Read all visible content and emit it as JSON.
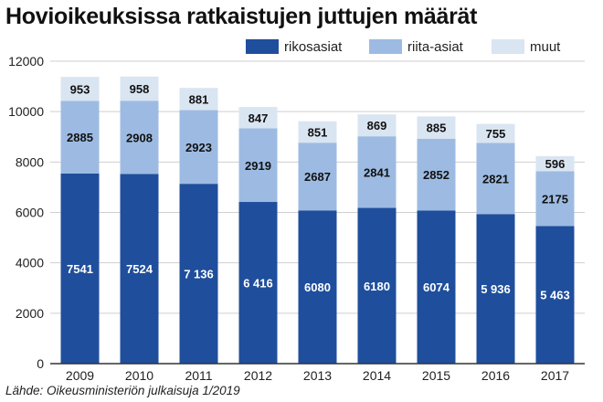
{
  "title": "Hovioikeuksissa ratkaistujen juttujen määrät",
  "source": "Lähde: Oikeusministeriön julkaisuja 1/2019",
  "colors": {
    "rikosasiat": "#1f4e9c",
    "riita_asiat": "#9dbbe2",
    "muut": "#dae5f2",
    "grid": "#cfcfcf",
    "axis": "#333333"
  },
  "chart_data": {
    "type": "bar",
    "stacked": true,
    "title": "Hovioikeuksissa ratkaistujen juttujen määrät",
    "xlabel": "",
    "ylabel": "",
    "categories": [
      "2009",
      "2010",
      "2011",
      "2012",
      "2013",
      "2014",
      "2015",
      "2016",
      "2017"
    ],
    "series": [
      {
        "name": "rikosasiat",
        "values": [
          7541,
          7524,
          7136,
          6416,
          6080,
          6180,
          6074,
          5936,
          5463
        ],
        "labels": [
          "7541",
          "7524",
          "7 136",
          "6 416",
          "6080",
          "6180",
          "6074",
          "5 936",
          "5 463"
        ]
      },
      {
        "name": "riita-asiat",
        "values": [
          2885,
          2908,
          2923,
          2919,
          2687,
          2841,
          2852,
          2821,
          2175
        ],
        "labels": [
          "2885",
          "2908",
          "2923",
          "2919",
          "2687",
          "2841",
          "2852",
          "2821",
          "2175"
        ]
      },
      {
        "name": "muut",
        "values": [
          953,
          958,
          881,
          847,
          851,
          869,
          885,
          755,
          596
        ],
        "labels": [
          "953",
          "958",
          "881",
          "847",
          "851",
          "869",
          "885",
          "755",
          "596"
        ]
      }
    ],
    "ylim": [
      0,
      12000
    ],
    "yticks": [
      0,
      2000,
      4000,
      6000,
      8000,
      10000,
      12000
    ],
    "ytick_labels": [
      "0",
      "2000",
      "4000",
      "6000",
      "8000",
      "10000",
      "12000"
    ],
    "grid": true,
    "legend_position": "top-right"
  }
}
